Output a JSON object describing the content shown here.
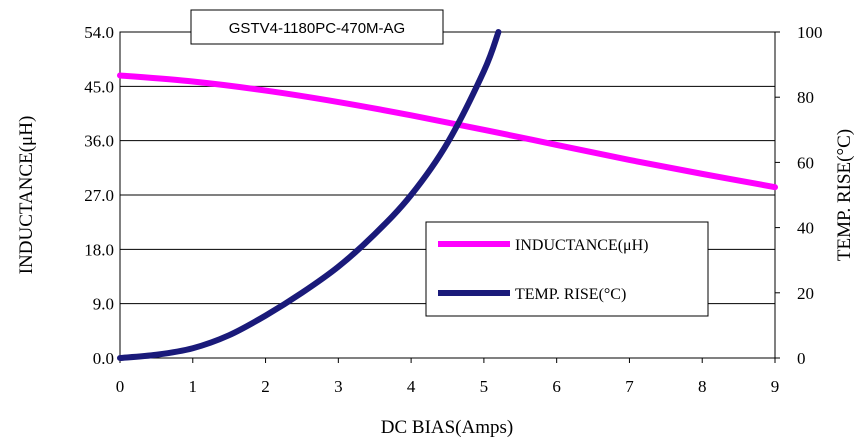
{
  "chart_data": {
    "type": "line",
    "title": "GSTV4-1180PC-470M-AG",
    "xlabel": "DC BIAS(Amps)",
    "ylabel": "INDUCTANCE(μH)",
    "y2label": "TEMP. RISE(°C)",
    "xlim": [
      0,
      9
    ],
    "ylim": [
      0,
      54
    ],
    "y2lim": [
      0,
      100
    ],
    "x_ticks": [
      "0",
      "1",
      "2",
      "3",
      "4",
      "5",
      "6",
      "7",
      "8",
      "9"
    ],
    "y_ticks": [
      "0.0",
      "9.0",
      "18.0",
      "27.0",
      "36.0",
      "45.0",
      "54.0"
    ],
    "y2_ticks": [
      "0",
      "20",
      "40",
      "60",
      "80",
      "100"
    ],
    "grid": "horizontal",
    "legend_position": "lower-right",
    "series": [
      {
        "name": "INDUCTANCE(μH)",
        "axis": "left",
        "color": "#ff00ff",
        "points": [
          [
            0,
            46.8
          ],
          [
            1,
            45.8
          ],
          [
            2,
            44.3
          ],
          [
            3,
            42.4
          ],
          [
            4,
            40.2
          ],
          [
            5,
            37.8
          ],
          [
            6,
            35.3
          ],
          [
            7,
            32.8
          ],
          [
            8,
            30.5
          ],
          [
            9,
            28.3
          ]
        ]
      },
      {
        "name": "TEMP. RISE(°C)",
        "axis": "right",
        "color": "#1a1a7a",
        "points": [
          [
            0,
            0
          ],
          [
            0.5,
            1
          ],
          [
            1,
            3
          ],
          [
            1.5,
            7
          ],
          [
            2,
            13
          ],
          [
            2.5,
            20
          ],
          [
            3,
            28
          ],
          [
            3.5,
            38
          ],
          [
            4,
            50
          ],
          [
            4.5,
            66
          ],
          [
            5,
            88
          ],
          [
            5.2,
            100
          ]
        ]
      }
    ]
  }
}
